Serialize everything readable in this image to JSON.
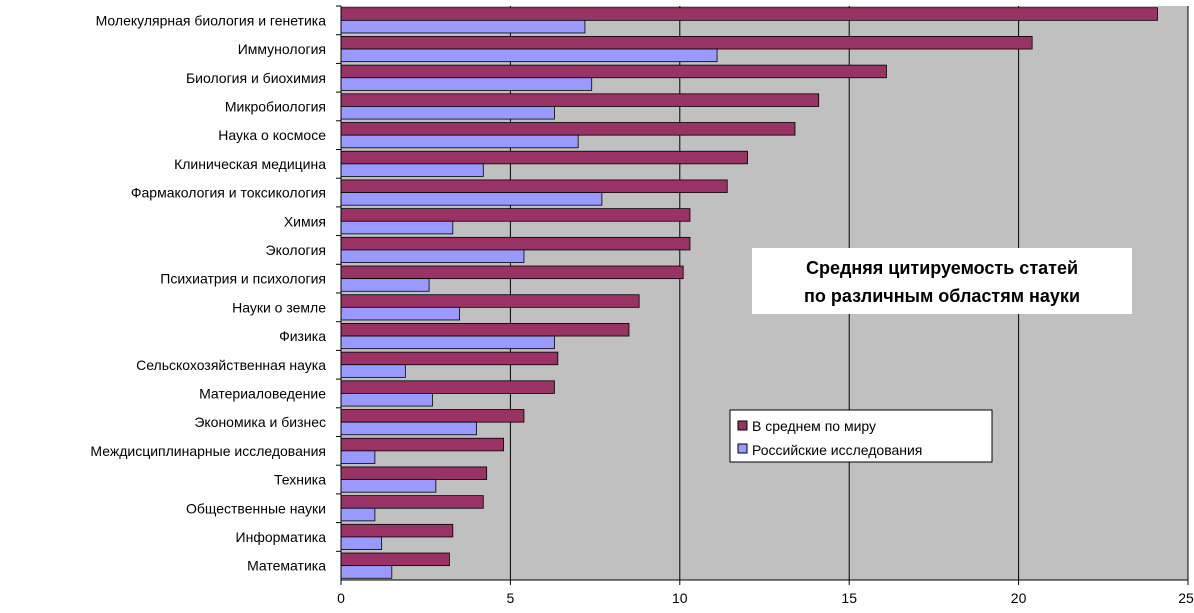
{
  "chart_data": {
    "type": "bar",
    "orientation": "horizontal",
    "title": "Средняя цитируемость статей по различным областям науки",
    "title_lines": [
      "Средняя цитируемость статей",
      "по различным областям науки"
    ],
    "categories": [
      "Молекулярная биология и генетика",
      "Иммунология",
      "Биология и биохимия",
      "Микробиология",
      "Наука о космосе",
      "Клиническая медицина",
      "Фармакология и токсикология",
      "Химия",
      "Экология",
      "Психиатрия и психология",
      "Науки о земле",
      "Физика",
      "Сельскохозяйственная наука",
      "Материаловедение",
      "Экономика и бизнес",
      "Междисциплинарные исследования",
      "Техника",
      "Общественные науки",
      "Информатика",
      "Математика"
    ],
    "series": [
      {
        "name": "В среднем по миру",
        "color": "#993366",
        "values": [
          24.1,
          20.4,
          16.1,
          14.1,
          13.4,
          12.0,
          11.4,
          10.3,
          10.3,
          10.1,
          8.8,
          8.5,
          6.4,
          6.3,
          5.4,
          4.8,
          4.3,
          4.2,
          3.3,
          3.2
        ]
      },
      {
        "name": "Российские исследования",
        "color": "#9999ff",
        "values": [
          7.2,
          11.1,
          7.4,
          6.3,
          7.0,
          4.2,
          7.7,
          3.3,
          5.4,
          2.6,
          3.5,
          6.3,
          1.9,
          2.7,
          4.0,
          1.0,
          2.8,
          1.0,
          1.2,
          1.5
        ]
      }
    ],
    "xlim": [
      0,
      25
    ],
    "xticks": [
      0,
      5,
      10,
      15,
      20,
      25
    ],
    "xlabel": "",
    "ylabel": "",
    "grid": "vertical major gridlines",
    "plot_background": "#c0c0c0",
    "legend_position": "right-middle"
  }
}
